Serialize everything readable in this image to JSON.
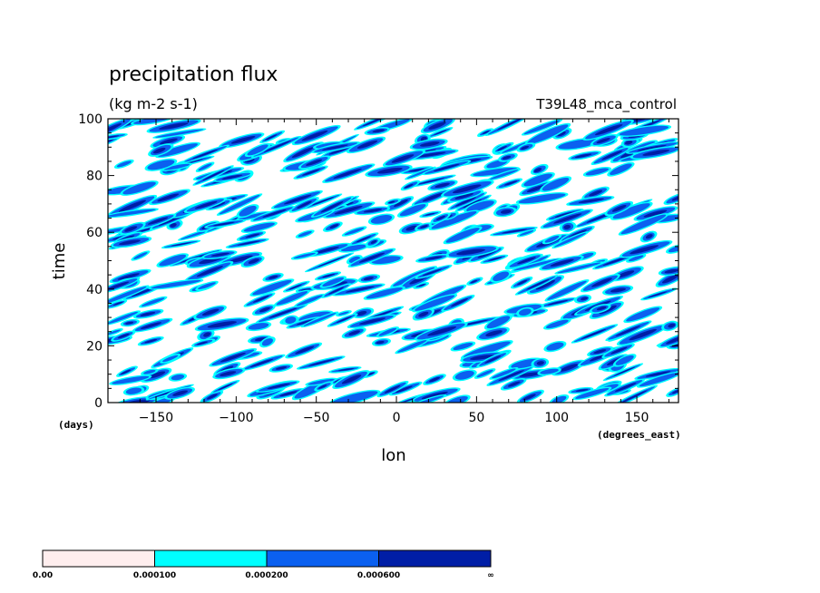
{
  "chart_data": {
    "type": "heatmap",
    "title": "precipitation flux",
    "subtitle": "(kg m-2 s-1)",
    "run_label": "T39L48_mca_control",
    "xlabel": "lon",
    "ylabel": "time",
    "x_unit": "(degrees_east)",
    "y_unit": "(days)",
    "xlim": [
      -180,
      176
    ],
    "ylim": [
      0,
      100
    ],
    "x_ticks": [
      -150,
      -100,
      -50,
      0,
      50,
      100,
      150
    ],
    "y_ticks": [
      0,
      20,
      40,
      60,
      80,
      100
    ],
    "grid": false,
    "colorbar": {
      "labels": [
        "0.00",
        "0.000100",
        "0.000200",
        "0.000600",
        "∞"
      ],
      "colors": [
        "#ffeeee",
        "#00ffff",
        "#0b60f0",
        "#001ea6"
      ]
    },
    "pattern_seed": 7
  }
}
